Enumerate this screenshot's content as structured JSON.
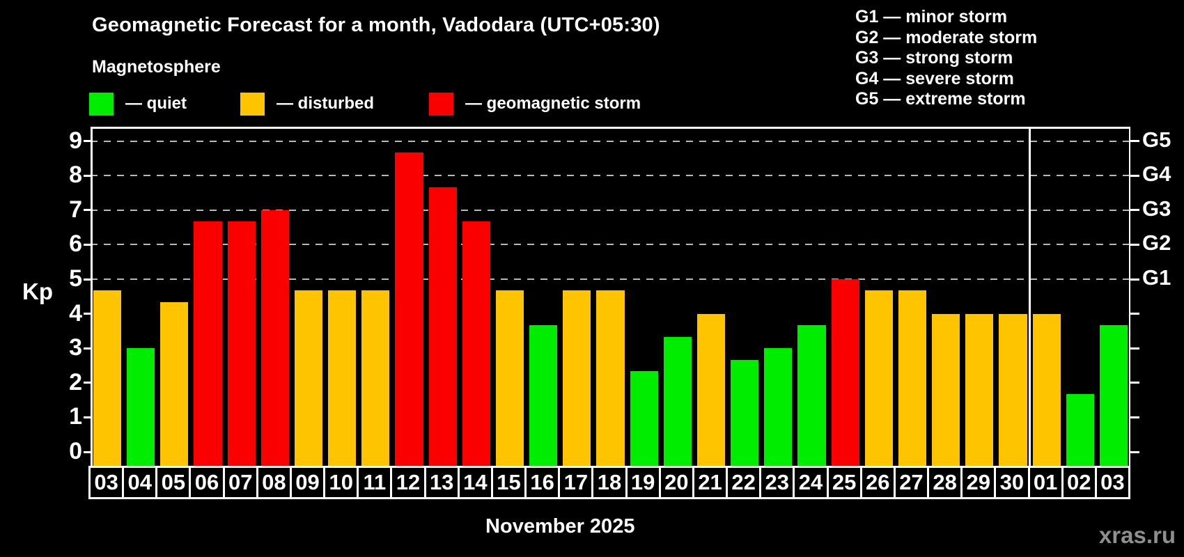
{
  "header": {
    "title": "Geomagnetic Forecast for a month, Vadodara (UTC+05:30)",
    "subtitle": "Magnetosphere"
  },
  "legend": {
    "items": [
      {
        "state": "quiet",
        "label": "— quiet"
      },
      {
        "state": "disturbed",
        "label": "— disturbed"
      },
      {
        "state": "storm",
        "label": "— geomagnetic storm"
      }
    ]
  },
  "storm_scale_legend": {
    "lines": [
      "G1 — minor storm",
      "G2 — moderate storm",
      "G3 — strong storm",
      "G4 — severe storm",
      "G5 — extreme storm"
    ]
  },
  "chart_data": {
    "type": "bar",
    "title": "Geomagnetic Forecast for a month, Vadodara (UTC+05:30)",
    "ylabel": "Kp",
    "xlabel": "November 2025",
    "ylim": [
      0,
      9
    ],
    "yticks": [
      0,
      1,
      2,
      3,
      4,
      5,
      6,
      7,
      8,
      9
    ],
    "gridlines_at": [
      5,
      6,
      7,
      8,
      9
    ],
    "grid": "dashed horizontal at 5-9 only",
    "legend_position": "top",
    "right_axis_labels": [
      {
        "text": "G1",
        "value": 5
      },
      {
        "text": "G2",
        "value": 6
      },
      {
        "text": "G3",
        "value": 7
      },
      {
        "text": "G4",
        "value": 8
      },
      {
        "text": "G5",
        "value": 9
      }
    ],
    "colors": {
      "quiet": "#00ed00",
      "disturbed": "#ffc400",
      "storm": "#fa0000"
    },
    "categories": [
      "03",
      "04",
      "05",
      "06",
      "07",
      "08",
      "09",
      "10",
      "11",
      "12",
      "13",
      "14",
      "15",
      "16",
      "17",
      "18",
      "19",
      "20",
      "21",
      "22",
      "23",
      "24",
      "25",
      "26",
      "27",
      "28",
      "29",
      "30",
      "01",
      "02",
      "03"
    ],
    "values": [
      4.67,
      3,
      4.33,
      6.67,
      6.67,
      7,
      4.67,
      4.67,
      4.67,
      8.67,
      7.67,
      6.67,
      4.67,
      3.67,
      4.67,
      4.67,
      2.33,
      3.33,
      4,
      2.67,
      3,
      3.67,
      5,
      4.67,
      4.67,
      4,
      4,
      4,
      4,
      1.67,
      3.67
    ],
    "states": [
      "disturbed",
      "quiet",
      "disturbed",
      "storm",
      "storm",
      "storm",
      "disturbed",
      "disturbed",
      "disturbed",
      "storm",
      "storm",
      "storm",
      "disturbed",
      "quiet",
      "disturbed",
      "disturbed",
      "quiet",
      "quiet",
      "disturbed",
      "quiet",
      "quiet",
      "quiet",
      "storm",
      "disturbed",
      "disturbed",
      "disturbed",
      "disturbed",
      "disturbed",
      "disturbed",
      "quiet",
      "quiet"
    ],
    "month_separator_after_index": 27
  },
  "axis": {
    "kp_label": "Kp"
  },
  "footer": {
    "month_label": "November 2025",
    "watermark": "xras.ru"
  }
}
